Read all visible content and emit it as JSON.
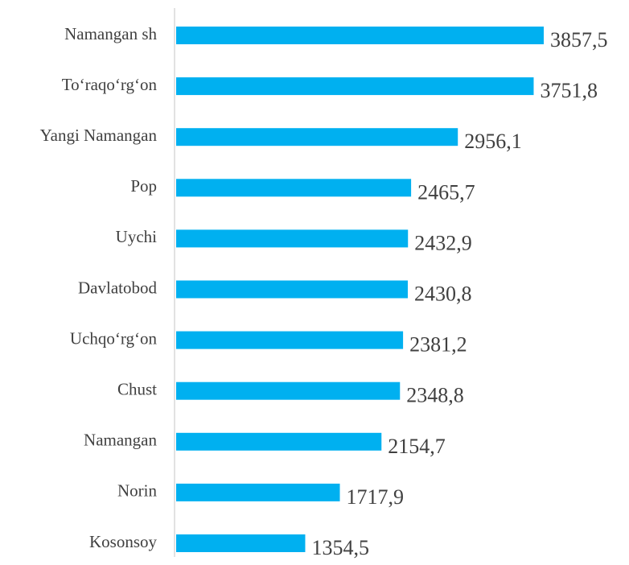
{
  "chart_data": {
    "type": "bar",
    "orientation": "horizontal",
    "categories": [
      "Namangan sh",
      "To‘raqo‘rg‘on",
      "Yangi Namangan",
      "Pop",
      "Uychi",
      "Davlatobod",
      "Uchqo‘rg‘on",
      "Chust",
      "Namangan",
      "Norin",
      "Kosonsoy"
    ],
    "values": [
      3857.5,
      3751.8,
      2956.1,
      2465.7,
      2432.9,
      2430.8,
      2381.2,
      2348.8,
      2154.7,
      1717.9,
      1354.5
    ],
    "value_labels": [
      "3857,5",
      "3751,8",
      "2956,1",
      "2465,7",
      "2432,9",
      "2430,8",
      "2381,2",
      "2348,8",
      "2154,7",
      "1717,9",
      "1354,5"
    ],
    "color": "#00b0f0"
  }
}
